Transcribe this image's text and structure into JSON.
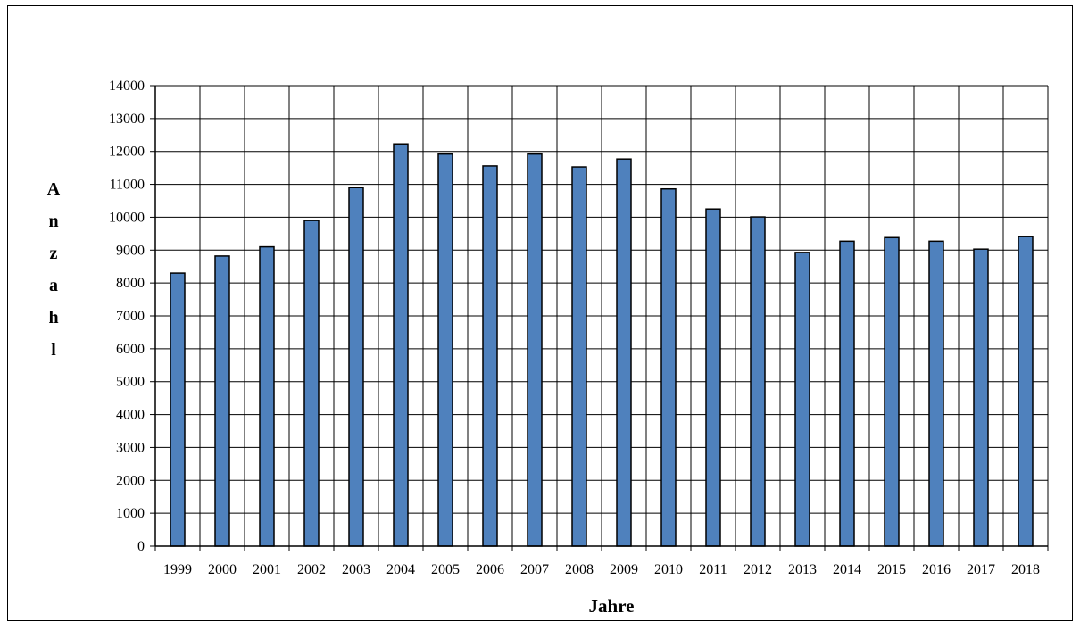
{
  "chart_data": {
    "type": "bar",
    "title": "",
    "xlabel": "Jahre",
    "ylabel": "Anzahl",
    "categories": [
      "1999",
      "2000",
      "2001",
      "2002",
      "2003",
      "2004",
      "2005",
      "2006",
      "2007",
      "2008",
      "2009",
      "2010",
      "2011",
      "2012",
      "2013",
      "2014",
      "2015",
      "2016",
      "2017",
      "2018"
    ],
    "values": [
      8300,
      8820,
      9100,
      9900,
      10900,
      12230,
      11920,
      11560,
      11920,
      11530,
      11770,
      10860,
      10250,
      10010,
      8930,
      9270,
      9380,
      9270,
      9030,
      9410
    ],
    "ylim": [
      0,
      14000
    ],
    "ytick_step": 1000,
    "grid": true,
    "legend": "none",
    "bar_color": "#4f81bd",
    "bar_edge_color": "#000000"
  }
}
